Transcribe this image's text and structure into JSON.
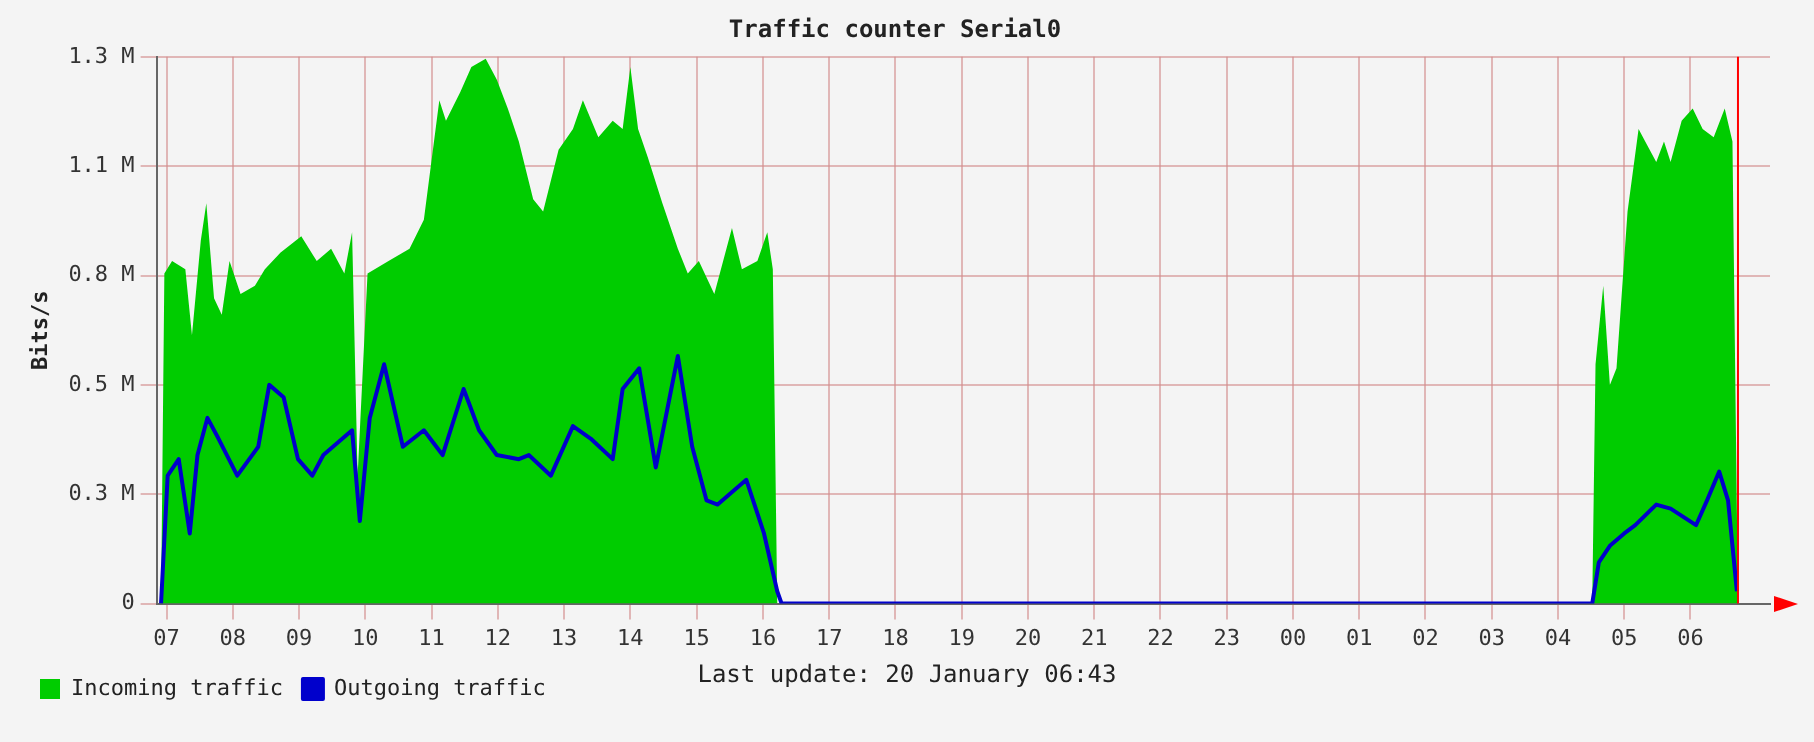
{
  "chart_data": {
    "type": "area",
    "title": "Traffic counter Serial0",
    "ylabel": "Bits/s",
    "annotations": [
      "Last update: 20 January 06:43"
    ],
    "xlim": [
      "--01-19T06:51",
      "--01-20T07:12"
    ],
    "xticks": [
      {
        "value": "--01-19T07:00",
        "label": "07"
      },
      {
        "value": "--01-19T08:00",
        "label": "08"
      },
      {
        "value": "--01-19T09:00",
        "label": "09"
      },
      {
        "value": "--01-19T10:00",
        "label": "10"
      },
      {
        "value": "--01-19T11:00",
        "label": "11"
      },
      {
        "value": "--01-19T12:00",
        "label": "12"
      },
      {
        "value": "--01-19T13:00",
        "label": "13"
      },
      {
        "value": "--01-19T14:00",
        "label": "14"
      },
      {
        "value": "--01-19T15:00",
        "label": "15"
      },
      {
        "value": "--01-19T16:00",
        "label": "16"
      },
      {
        "value": "--01-19T17:00",
        "label": "17"
      },
      {
        "value": "--01-19T18:00",
        "label": "18"
      },
      {
        "value": "--01-19T19:00",
        "label": "19"
      },
      {
        "value": "--01-19T20:00",
        "label": "20"
      },
      {
        "value": "--01-19T21:00",
        "label": "21"
      },
      {
        "value": "--01-19T22:00",
        "label": "22"
      },
      {
        "value": "--01-19T23:00",
        "label": "23"
      },
      {
        "value": "--01-20T00:00",
        "label": "00"
      },
      {
        "value": "--01-20T01:00",
        "label": "01"
      },
      {
        "value": "--01-20T02:00",
        "label": "02"
      },
      {
        "value": "--01-20T03:00",
        "label": "03"
      },
      {
        "value": "--01-20T04:00",
        "label": "04"
      },
      {
        "value": "--01-20T05:00",
        "label": "05"
      },
      {
        "value": "--01-20T06:00",
        "label": "06"
      }
    ],
    "ylim": [
      0,
      1325000
    ],
    "yticks": [
      0,
      {
        "value": 265000,
        "label": "0.3 M"
      },
      {
        "value": 530000,
        "label": "0.5 M"
      },
      {
        "value": 795000,
        "label": "0.8 M"
      },
      {
        "value": 1060000,
        "label": "1.1 M"
      },
      {
        "value": 1325000,
        "label": "1.3 M"
      }
    ],
    "grid": true,
    "legend": "bottom left",
    "ref_lines": [
      {
        "axis": "x",
        "value": "--01-20T06:43",
        "color": "#ff0000"
      }
    ],
    "series": [
      {
        "name": "Incoming traffic",
        "type": "area",
        "color": "#00cc00",
        "x": [
          "--01-19T06:55",
          "--01-19T06:58",
          "--01-19T07:05",
          "--01-19T07:17",
          "--01-19T07:23",
          "--01-19T07:31",
          "--01-19T07:36",
          "--01-19T07:43",
          "--01-19T07:50",
          "--01-19T07:57",
          "--01-19T08:07",
          "--01-19T08:20",
          "--01-19T08:29",
          "--01-19T08:43",
          "--01-19T09:02",
          "--01-19T09:16",
          "--01-19T09:29",
          "--01-19T09:41",
          "--01-19T09:48",
          "--01-19T09:53",
          "--01-19T10:02",
          "--01-19T10:21",
          "--01-19T10:40",
          "--01-19T10:53",
          "--01-19T11:07",
          "--01-19T11:13",
          "--01-19T11:26",
          "--01-19T11:36",
          "--01-19T11:49",
          "--01-19T11:59",
          "--01-19T12:09",
          "--01-19T12:19",
          "--01-19T12:32",
          "--01-19T12:41",
          "--01-19T12:55",
          "--01-19T13:08",
          "--01-19T13:17",
          "--01-19T13:31",
          "--01-19T13:44",
          "--01-19T13:53",
          "--01-19T14:00",
          "--01-19T14:07",
          "--01-19T14:16",
          "--01-19T14:29",
          "--01-19T14:43",
          "--01-19T14:52",
          "--01-19T15:02",
          "--01-19T15:16",
          "--01-19T15:32",
          "--01-19T15:41",
          "--01-19T15:55",
          "--01-19T16:04",
          "--01-19T16:09",
          "--01-19T16:13",
          "--01-20T04:31",
          "--01-20T04:34",
          "--01-20T04:41",
          "--01-20T04:47",
          "--01-20T04:53",
          "--01-20T05:03",
          "--01-20T05:13",
          "--01-20T05:19",
          "--01-20T05:29",
          "--01-20T05:36",
          "--01-20T05:42",
          "--01-20T05:52",
          "--01-20T06:02",
          "--01-20T06:11",
          "--01-20T06:21",
          "--01-20T06:31",
          "--01-20T06:38",
          "--01-20T06:43"
        ],
        "values": [
          0,
          800000,
          830000,
          810000,
          650000,
          880000,
          970000,
          740000,
          700000,
          830000,
          750000,
          770000,
          810000,
          850000,
          890000,
          830000,
          860000,
          800000,
          900000,
          310000,
          800000,
          830000,
          860000,
          930000,
          1220000,
          1170000,
          1240000,
          1300000,
          1320000,
          1270000,
          1200000,
          1120000,
          980000,
          950000,
          1100000,
          1150000,
          1220000,
          1130000,
          1170000,
          1150000,
          1300000,
          1150000,
          1080000,
          970000,
          860000,
          800000,
          830000,
          750000,
          910000,
          810000,
          830000,
          900000,
          810000,
          0,
          0,
          580000,
          770000,
          530000,
          570000,
          950000,
          1150000,
          1120000,
          1070000,
          1120000,
          1070000,
          1170000,
          1200000,
          1150000,
          1130000,
          1200000,
          1120000,
          0
        ]
      },
      {
        "name": "Outgoing traffic",
        "type": "line",
        "color": "#0000cc",
        "x": [
          "--01-19T06:55",
          "--01-19T07:01",
          "--01-19T07:11",
          "--01-19T07:21",
          "--01-19T07:28",
          "--01-19T07:37",
          "--01-19T07:47",
          "--01-19T08:04",
          "--01-19T08:23",
          "--01-19T08:33",
          "--01-19T08:46",
          "--01-19T08:59",
          "--01-19T09:12",
          "--01-19T09:22",
          "--01-19T09:48",
          "--01-19T09:55",
          "--01-19T10:04",
          "--01-19T10:17",
          "--01-19T10:34",
          "--01-19T10:53",
          "--01-19T11:10",
          "--01-19T11:29",
          "--01-19T11:43",
          "--01-19T11:59",
          "--01-19T12:19",
          "--01-19T12:28",
          "--01-19T12:48",
          "--01-19T13:08",
          "--01-19T13:24",
          "--01-19T13:44",
          "--01-19T13:53",
          "--01-19T14:08",
          "--01-19T14:23",
          "--01-19T14:43",
          "--01-19T14:56",
          "--01-19T15:09",
          "--01-19T15:19",
          "--01-19T15:45",
          "--01-19T16:01",
          "--01-19T16:13",
          "--01-19T16:17",
          "--01-20T04:31",
          "--01-20T04:37",
          "--01-20T04:47",
          "--01-20T05:00",
          "--01-20T05:10",
          "--01-20T05:29",
          "--01-20T05:42",
          "--01-20T06:05",
          "--01-20T06:15",
          "--01-20T06:26",
          "--01-20T06:34",
          "--01-20T06:42"
        ],
        "values": [
          0,
          310000,
          350000,
          170000,
          360000,
          450000,
          400000,
          310000,
          380000,
          530000,
          500000,
          350000,
          310000,
          360000,
          420000,
          200000,
          450000,
          580000,
          380000,
          420000,
          360000,
          520000,
          420000,
          360000,
          350000,
          360000,
          310000,
          430000,
          400000,
          350000,
          520000,
          570000,
          330000,
          600000,
          380000,
          250000,
          240000,
          300000,
          170000,
          30000,
          0,
          0,
          100000,
          140000,
          170000,
          190000,
          240000,
          230000,
          190000,
          250000,
          320000,
          250000,
          30000
        ]
      }
    ]
  }
}
